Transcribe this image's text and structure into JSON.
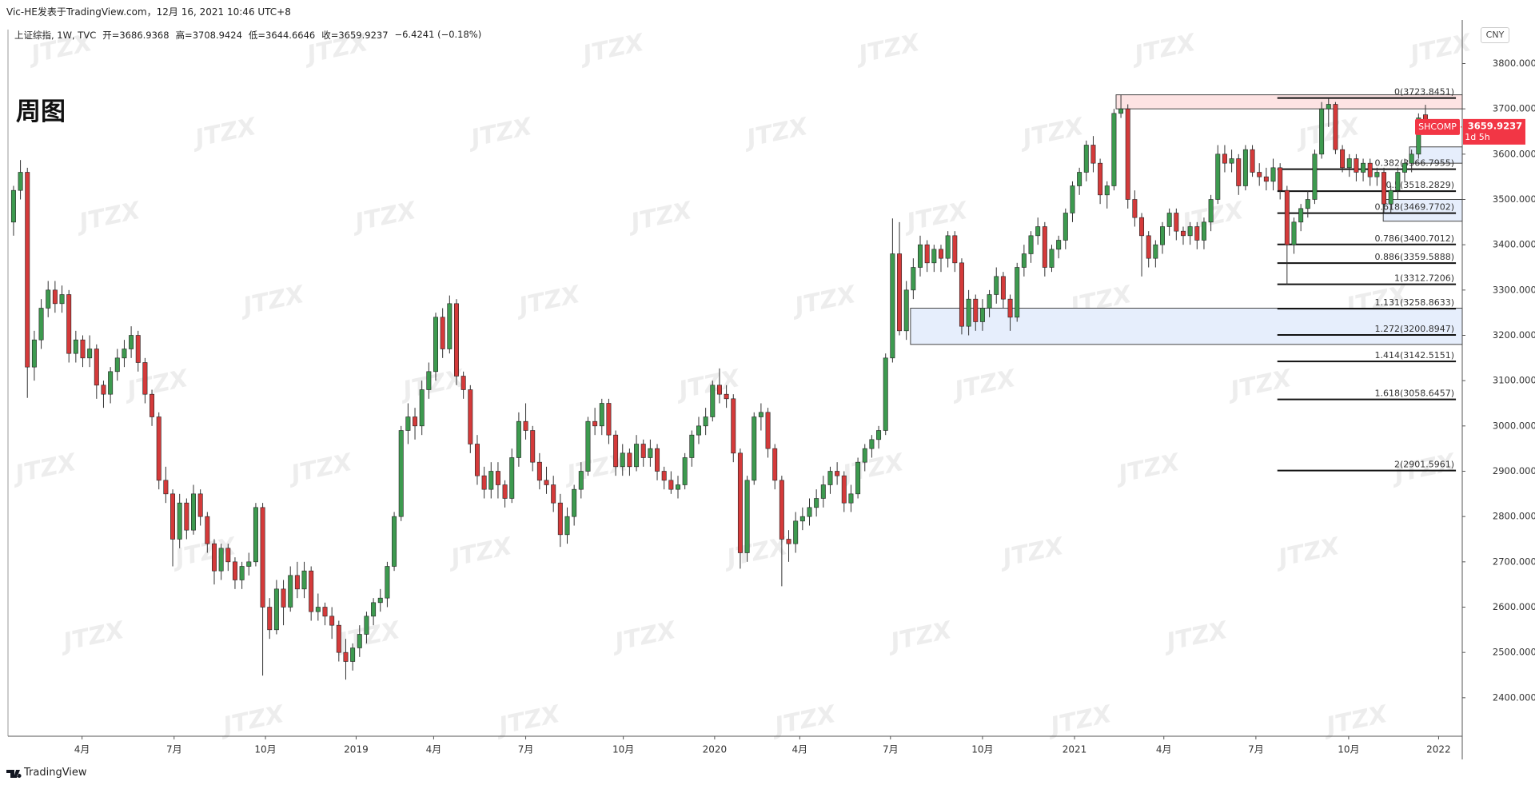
{
  "chart_data": {
    "type": "candlestick",
    "header": "Vic-HE发表于TradingView.com，12月 16, 2021 10:46 UTC+8",
    "title": "周图",
    "currency": "CNY",
    "footer": "TradingView",
    "watermark": "JTZX",
    "legend": {
      "symbol": "上证综指, 1W, TVC",
      "open": "开=3686.9368",
      "high": "高=3708.9424",
      "low": "低=3644.6646",
      "close": "收=3659.9237",
      "change": "−6.4241 (−0.18%)"
    },
    "up_color": "#3d9a4f",
    "down_color": "#d43a3a",
    "ylim": [
      2315,
      3875
    ],
    "yticks": [
      {
        "value": 2400,
        "label": "2400.0000"
      },
      {
        "value": 2500,
        "label": "2500.0000"
      },
      {
        "value": 2600,
        "label": "2600.0000"
      },
      {
        "value": 2700,
        "label": "2700.0000"
      },
      {
        "value": 2800,
        "label": "2800.0000"
      },
      {
        "value": 2900,
        "label": "2900.0000"
      },
      {
        "value": 3000,
        "label": "3000.0000"
      },
      {
        "value": 3100,
        "label": "3100.0000"
      },
      {
        "value": 3200,
        "label": "3200.0000"
      },
      {
        "value": 3300,
        "label": "3300.0000"
      },
      {
        "value": 3400,
        "label": "3400.0000"
      },
      {
        "value": 3500,
        "label": "3500.0000"
      },
      {
        "value": 3600,
        "label": "3600.0000"
      },
      {
        "value": 3700,
        "label": "3700.0000"
      },
      {
        "value": 3800,
        "label": "3800.0000"
      }
    ],
    "xlim": [
      -0.8,
      209.2
    ],
    "xticks": [
      {
        "value": 9.9,
        "label": "4月"
      },
      {
        "value": 23.2,
        "label": "7月"
      },
      {
        "value": 36.4,
        "label": "10月"
      },
      {
        "value": 49.5,
        "label": "2019"
      },
      {
        "value": 60.7,
        "label": "4月"
      },
      {
        "value": 74.0,
        "label": "7月"
      },
      {
        "value": 88.1,
        "label": "10月"
      },
      {
        "value": 101.3,
        "label": "2020"
      },
      {
        "value": 113.6,
        "label": "4月"
      },
      {
        "value": 126.7,
        "label": "7月"
      },
      {
        "value": 140.0,
        "label": "10月"
      },
      {
        "value": 153.3,
        "label": "2021"
      },
      {
        "value": 166.2,
        "label": "4月"
      },
      {
        "value": 179.5,
        "label": "7月"
      },
      {
        "value": 192.9,
        "label": "10月"
      },
      {
        "value": 205.9,
        "label": "2022"
      }
    ],
    "last_price": 3659.9237,
    "ticker": "SHCOMP",
    "countdown": "1d 5h",
    "zones": [
      {
        "top": 3731,
        "bottom": 3700,
        "color": "#fde3e3"
      },
      {
        "top": 3260,
        "bottom": 3180,
        "color": "#e6eefc"
      },
      {
        "top": 3616,
        "bottom": 3580,
        "color": "#e6eefc"
      },
      {
        "top": 3500,
        "bottom": 3452,
        "color": "#e6eefc"
      }
    ],
    "fib_levels": [
      {
        "value": 3723.8451,
        "label": "0(3723.8451)"
      },
      {
        "value": 3566.7955,
        "label": "0.382(3566.7955)"
      },
      {
        "value": 3518.2829,
        "label": "0.5(3518.2829)"
      },
      {
        "value": 3469.7702,
        "label": "0.618(3469.7702)"
      },
      {
        "value": 3400.7012,
        "label": "0.786(3400.7012)"
      },
      {
        "value": 3359.5888,
        "label": "0.886(3359.5888)"
      },
      {
        "value": 3312.7206,
        "label": "1(3312.7206)"
      },
      {
        "value": 3258.8633,
        "label": "1.131(3258.8633)"
      },
      {
        "value": 3200.8947,
        "label": "1.272(3200.8947)"
      },
      {
        "value": 3142.5151,
        "label": "1.414(3142.5151)"
      },
      {
        "value": 3058.6457,
        "label": "1.618(3058.6457)"
      },
      {
        "value": 2901.5961,
        "label": "2(2901.5961)"
      }
    ],
    "candles": [
      [
        3450,
        3530,
        3420,
        3520
      ],
      [
        3520,
        3587,
        3500,
        3560
      ],
      [
        3560,
        3570,
        3062,
        3130
      ],
      [
        3130,
        3210,
        3100,
        3190
      ],
      [
        3190,
        3280,
        3170,
        3260
      ],
      [
        3260,
        3320,
        3240,
        3300
      ],
      [
        3300,
        3320,
        3250,
        3270
      ],
      [
        3270,
        3310,
        3250,
        3290
      ],
      [
        3290,
        3300,
        3140,
        3160
      ],
      [
        3160,
        3210,
        3140,
        3190
      ],
      [
        3190,
        3200,
        3130,
        3150
      ],
      [
        3150,
        3200,
        3130,
        3170
      ],
      [
        3170,
        3180,
        3060,
        3090
      ],
      [
        3090,
        3100,
        3040,
        3070
      ],
      [
        3070,
        3130,
        3050,
        3120
      ],
      [
        3120,
        3170,
        3100,
        3150
      ],
      [
        3150,
        3190,
        3130,
        3170
      ],
      [
        3170,
        3220,
        3150,
        3200
      ],
      [
        3200,
        3210,
        3120,
        3140
      ],
      [
        3140,
        3150,
        3050,
        3070
      ],
      [
        3070,
        3080,
        3000,
        3020
      ],
      [
        3020,
        3030,
        2860,
        2880
      ],
      [
        2880,
        2910,
        2830,
        2850
      ],
      [
        2850,
        2860,
        2690,
        2750
      ],
      [
        2750,
        2850,
        2730,
        2830
      ],
      [
        2830,
        2840,
        2750,
        2770
      ],
      [
        2770,
        2870,
        2760,
        2850
      ],
      [
        2850,
        2860,
        2780,
        2800
      ],
      [
        2800,
        2810,
        2720,
        2740
      ],
      [
        2740,
        2750,
        2650,
        2680
      ],
      [
        2680,
        2740,
        2660,
        2730
      ],
      [
        2730,
        2740,
        2680,
        2700
      ],
      [
        2700,
        2710,
        2640,
        2660
      ],
      [
        2660,
        2700,
        2640,
        2690
      ],
      [
        2690,
        2720,
        2670,
        2700
      ],
      [
        2700,
        2830,
        2690,
        2820
      ],
      [
        2820,
        2830,
        2449,
        2600
      ],
      [
        2600,
        2620,
        2530,
        2550
      ],
      [
        2550,
        2660,
        2540,
        2640
      ],
      [
        2640,
        2660,
        2560,
        2600
      ],
      [
        2600,
        2690,
        2590,
        2670
      ],
      [
        2670,
        2700,
        2620,
        2640
      ],
      [
        2640,
        2700,
        2620,
        2680
      ],
      [
        2680,
        2690,
        2570,
        2590
      ],
      [
        2590,
        2630,
        2570,
        2600
      ],
      [
        2600,
        2610,
        2560,
        2580
      ],
      [
        2580,
        2600,
        2530,
        2560
      ],
      [
        2560,
        2570,
        2480,
        2500
      ],
      [
        2500,
        2530,
        2440,
        2480
      ],
      [
        2480,
        2520,
        2460,
        2510
      ],
      [
        2510,
        2560,
        2490,
        2540
      ],
      [
        2540,
        2590,
        2520,
        2580
      ],
      [
        2580,
        2620,
        2560,
        2610
      ],
      [
        2610,
        2640,
        2590,
        2620
      ],
      [
        2620,
        2700,
        2600,
        2690
      ],
      [
        2690,
        2810,
        2680,
        2800
      ],
      [
        2800,
        3000,
        2790,
        2990
      ],
      [
        2990,
        3050,
        2960,
        3020
      ],
      [
        3020,
        3040,
        2970,
        3000
      ],
      [
        3000,
        3100,
        2980,
        3080
      ],
      [
        3080,
        3140,
        3060,
        3120
      ],
      [
        3120,
        3250,
        3100,
        3240
      ],
      [
        3240,
        3260,
        3150,
        3170
      ],
      [
        3170,
        3288,
        3160,
        3270
      ],
      [
        3270,
        3280,
        3090,
        3110
      ],
      [
        3110,
        3120,
        3060,
        3080
      ],
      [
        3080,
        3090,
        2940,
        2960
      ],
      [
        2960,
        2980,
        2870,
        2890
      ],
      [
        2890,
        2910,
        2840,
        2860
      ],
      [
        2860,
        2920,
        2840,
        2900
      ],
      [
        2900,
        2920,
        2840,
        2870
      ],
      [
        2870,
        2880,
        2820,
        2840
      ],
      [
        2840,
        2950,
        2830,
        2930
      ],
      [
        2930,
        3030,
        2910,
        3010
      ],
      [
        3010,
        3050,
        2970,
        2990
      ],
      [
        2990,
        3000,
        2900,
        2920
      ],
      [
        2920,
        2940,
        2860,
        2880
      ],
      [
        2880,
        2910,
        2850,
        2870
      ],
      [
        2870,
        2890,
        2810,
        2830
      ],
      [
        2830,
        2850,
        2733,
        2760
      ],
      [
        2760,
        2820,
        2740,
        2800
      ],
      [
        2800,
        2870,
        2780,
        2860
      ],
      [
        2860,
        2920,
        2840,
        2900
      ],
      [
        2900,
        3020,
        2890,
        3010
      ],
      [
        3010,
        3040,
        2980,
        3000
      ],
      [
        3000,
        3060,
        2980,
        3050
      ],
      [
        3050,
        3060,
        2960,
        2980
      ],
      [
        2980,
        2990,
        2890,
        2910
      ],
      [
        2910,
        2960,
        2890,
        2940
      ],
      [
        2940,
        2950,
        2890,
        2910
      ],
      [
        2910,
        2980,
        2900,
        2960
      ],
      [
        2960,
        2970,
        2910,
        2930
      ],
      [
        2930,
        2970,
        2910,
        2950
      ],
      [
        2950,
        2960,
        2880,
        2900
      ],
      [
        2900,
        2910,
        2860,
        2880
      ],
      [
        2880,
        2900,
        2850,
        2860
      ],
      [
        2860,
        2890,
        2840,
        2870
      ],
      [
        2870,
        2940,
        2860,
        2930
      ],
      [
        2930,
        2990,
        2910,
        2980
      ],
      [
        2980,
        3020,
        2960,
        3000
      ],
      [
        3000,
        3040,
        2980,
        3020
      ],
      [
        3020,
        3100,
        3010,
        3090
      ],
      [
        3090,
        3127,
        3050,
        3070
      ],
      [
        3070,
        3090,
        3040,
        3060
      ],
      [
        3060,
        3070,
        2920,
        2940
      ],
      [
        2940,
        2950,
        2685,
        2720
      ],
      [
        2720,
        2890,
        2700,
        2880
      ],
      [
        2880,
        3030,
        2870,
        3020
      ],
      [
        3020,
        3050,
        2990,
        3030
      ],
      [
        3030,
        3040,
        2930,
        2950
      ],
      [
        2950,
        2960,
        2860,
        2880
      ],
      [
        2880,
        2890,
        2646,
        2750
      ],
      [
        2750,
        2770,
        2700,
        2740
      ],
      [
        2740,
        2810,
        2720,
        2790
      ],
      [
        2790,
        2820,
        2770,
        2800
      ],
      [
        2800,
        2840,
        2780,
        2820
      ],
      [
        2820,
        2860,
        2800,
        2840
      ],
      [
        2840,
        2890,
        2820,
        2870
      ],
      [
        2870,
        2910,
        2850,
        2900
      ],
      [
        2900,
        2920,
        2870,
        2890
      ],
      [
        2890,
        2900,
        2810,
        2830
      ],
      [
        2830,
        2870,
        2810,
        2850
      ],
      [
        2850,
        2930,
        2840,
        2920
      ],
      [
        2920,
        2960,
        2900,
        2950
      ],
      [
        2950,
        2980,
        2930,
        2970
      ],
      [
        2970,
        3000,
        2950,
        2990
      ],
      [
        2990,
        3160,
        2980,
        3150
      ],
      [
        3150,
        3458,
        3140,
        3380
      ],
      [
        3380,
        3450,
        3200,
        3210
      ],
      [
        3210,
        3320,
        3190,
        3300
      ],
      [
        3300,
        3370,
        3280,
        3350
      ],
      [
        3350,
        3420,
        3330,
        3400
      ],
      [
        3400,
        3410,
        3340,
        3360
      ],
      [
        3360,
        3400,
        3340,
        3390
      ],
      [
        3390,
        3400,
        3340,
        3370
      ],
      [
        3370,
        3430,
        3350,
        3420
      ],
      [
        3420,
        3430,
        3340,
        3360
      ],
      [
        3360,
        3370,
        3202,
        3220
      ],
      [
        3220,
        3300,
        3200,
        3280
      ],
      [
        3280,
        3290,
        3210,
        3230
      ],
      [
        3230,
        3280,
        3210,
        3260
      ],
      [
        3260,
        3300,
        3240,
        3290
      ],
      [
        3290,
        3350,
        3270,
        3330
      ],
      [
        3330,
        3340,
        3260,
        3280
      ],
      [
        3280,
        3290,
        3210,
        3240
      ],
      [
        3240,
        3360,
        3230,
        3350
      ],
      [
        3350,
        3400,
        3330,
        3380
      ],
      [
        3380,
        3430,
        3360,
        3420
      ],
      [
        3420,
        3460,
        3400,
        3440
      ],
      [
        3440,
        3450,
        3330,
        3350
      ],
      [
        3350,
        3400,
        3340,
        3390
      ],
      [
        3390,
        3420,
        3370,
        3410
      ],
      [
        3410,
        3480,
        3390,
        3470
      ],
      [
        3470,
        3540,
        3450,
        3530
      ],
      [
        3530,
        3570,
        3510,
        3560
      ],
      [
        3560,
        3630,
        3540,
        3620
      ],
      [
        3620,
        3640,
        3560,
        3580
      ],
      [
        3580,
        3590,
        3490,
        3510
      ],
      [
        3510,
        3540,
        3480,
        3530
      ],
      [
        3530,
        3700,
        3520,
        3690
      ],
      [
        3690,
        3731,
        3680,
        3700
      ],
      [
        3700,
        3710,
        3480,
        3500
      ],
      [
        3500,
        3520,
        3440,
        3460
      ],
      [
        3460,
        3470,
        3330,
        3420
      ],
      [
        3420,
        3430,
        3350,
        3370
      ],
      [
        3370,
        3410,
        3350,
        3400
      ],
      [
        3400,
        3450,
        3380,
        3440
      ],
      [
        3440,
        3480,
        3420,
        3470
      ],
      [
        3470,
        3480,
        3410,
        3430
      ],
      [
        3430,
        3440,
        3400,
        3420
      ],
      [
        3420,
        3450,
        3400,
        3440
      ],
      [
        3440,
        3450,
        3390,
        3410
      ],
      [
        3410,
        3460,
        3390,
        3450
      ],
      [
        3450,
        3510,
        3430,
        3500
      ],
      [
        3500,
        3620,
        3490,
        3600
      ],
      [
        3600,
        3620,
        3560,
        3580
      ],
      [
        3580,
        3610,
        3560,
        3590
      ],
      [
        3590,
        3600,
        3510,
        3530
      ],
      [
        3530,
        3620,
        3520,
        3610
      ],
      [
        3610,
        3620,
        3550,
        3560
      ],
      [
        3560,
        3580,
        3530,
        3550
      ],
      [
        3550,
        3570,
        3520,
        3540
      ],
      [
        3540,
        3590,
        3520,
        3570
      ],
      [
        3570,
        3580,
        3500,
        3520
      ],
      [
        3520,
        3530,
        3312,
        3400
      ],
      [
        3400,
        3460,
        3380,
        3450
      ],
      [
        3450,
        3490,
        3430,
        3480
      ],
      [
        3480,
        3520,
        3460,
        3500
      ],
      [
        3500,
        3610,
        3490,
        3600
      ],
      [
        3600,
        3715,
        3590,
        3700
      ],
      [
        3700,
        3723,
        3660,
        3710
      ],
      [
        3710,
        3715,
        3600,
        3610
      ],
      [
        3610,
        3620,
        3560,
        3570
      ],
      [
        3570,
        3600,
        3550,
        3590
      ],
      [
        3590,
        3600,
        3540,
        3560
      ],
      [
        3560,
        3590,
        3540,
        3580
      ],
      [
        3580,
        3590,
        3530,
        3550
      ],
      [
        3550,
        3570,
        3530,
        3560
      ],
      [
        3560,
        3570,
        3470,
        3490
      ],
      [
        3490,
        3530,
        3470,
        3520
      ],
      [
        3520,
        3570,
        3500,
        3560
      ],
      [
        3560,
        3590,
        3540,
        3580
      ],
      [
        3580,
        3610,
        3560,
        3600
      ],
      [
        3600,
        3690,
        3590,
        3680
      ],
      [
        3686.9368,
        3708.9424,
        3644.6646,
        3659.9237
      ]
    ]
  }
}
